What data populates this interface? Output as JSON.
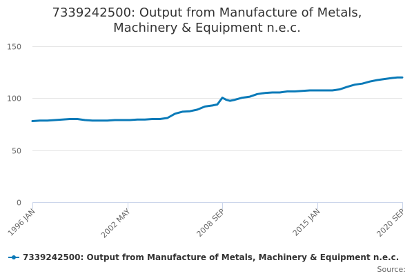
{
  "title_lines": [
    "7339242500: Output from Manufacture of Metals,",
    "Machinery & Equipment n.e.c."
  ],
  "legend": {
    "label": "7339242500: Output from Manufacture of Metals, Machinery & Equipment n.e.c."
  },
  "source": {
    "label": "Source:"
  },
  "colors": {
    "series": "#0a7ab8",
    "grid": "#e6e6e6",
    "axis": "#ccd6eb"
  },
  "chart_data": {
    "type": "line",
    "title": "7339242500: Output from Manufacture of Metals, Machinery & Equipment n.e.c.",
    "xlabel": "",
    "ylabel": "",
    "xlim": [
      "1996-01",
      "2020-09"
    ],
    "ylim": [
      0,
      150
    ],
    "yticks": [
      0,
      50,
      100,
      150
    ],
    "xtick_labels": [
      {
        "date": "1996-01",
        "label": "1996 JAN"
      },
      {
        "date": "2002-05",
        "label": "2002 MAY"
      },
      {
        "date": "2008-09",
        "label": "2008 SEP"
      },
      {
        "date": "2015-01",
        "label": "2015 JAN"
      },
      {
        "date": "2020-09",
        "label": "2020 SEP"
      }
    ],
    "grid": true,
    "legend_position": "bottom",
    "series": [
      {
        "name": "7339242500: Output from Manufacture of Metals, Machinery & Equipment n.e.c.",
        "x": [
          "1996-01",
          "1996-07",
          "1997-01",
          "1997-07",
          "1998-01",
          "1998-07",
          "1999-01",
          "1999-07",
          "2000-01",
          "2000-07",
          "2001-01",
          "2001-07",
          "2002-01",
          "2002-07",
          "2003-01",
          "2003-07",
          "2004-01",
          "2004-07",
          "2005-01",
          "2005-07",
          "2006-01",
          "2006-07",
          "2007-01",
          "2007-07",
          "2008-01",
          "2008-05",
          "2008-09",
          "2008-12",
          "2009-03",
          "2009-07",
          "2010-01",
          "2010-07",
          "2011-01",
          "2011-07",
          "2012-01",
          "2012-07",
          "2013-01",
          "2013-07",
          "2014-01",
          "2014-07",
          "2015-01",
          "2015-07",
          "2016-01",
          "2016-07",
          "2017-01",
          "2017-07",
          "2018-01",
          "2018-07",
          "2019-01",
          "2019-07",
          "2020-01",
          "2020-05",
          "2020-09"
        ],
        "values": [
          78,
          78.5,
          78.5,
          79,
          79.5,
          80,
          80,
          79,
          78.5,
          78.5,
          78.5,
          79,
          79,
          79,
          79.5,
          79.5,
          80,
          80,
          81,
          85,
          87,
          87.5,
          89,
          92,
          93,
          94,
          100.5,
          98.5,
          97.5,
          98.5,
          100.5,
          101.5,
          104,
          105,
          105.5,
          105.5,
          106.5,
          106.5,
          107,
          107.5,
          107.5,
          107.5,
          107.5,
          108.5,
          111,
          113,
          114,
          116,
          117.5,
          118.5,
          119.5,
          120,
          120
        ]
      }
    ]
  }
}
